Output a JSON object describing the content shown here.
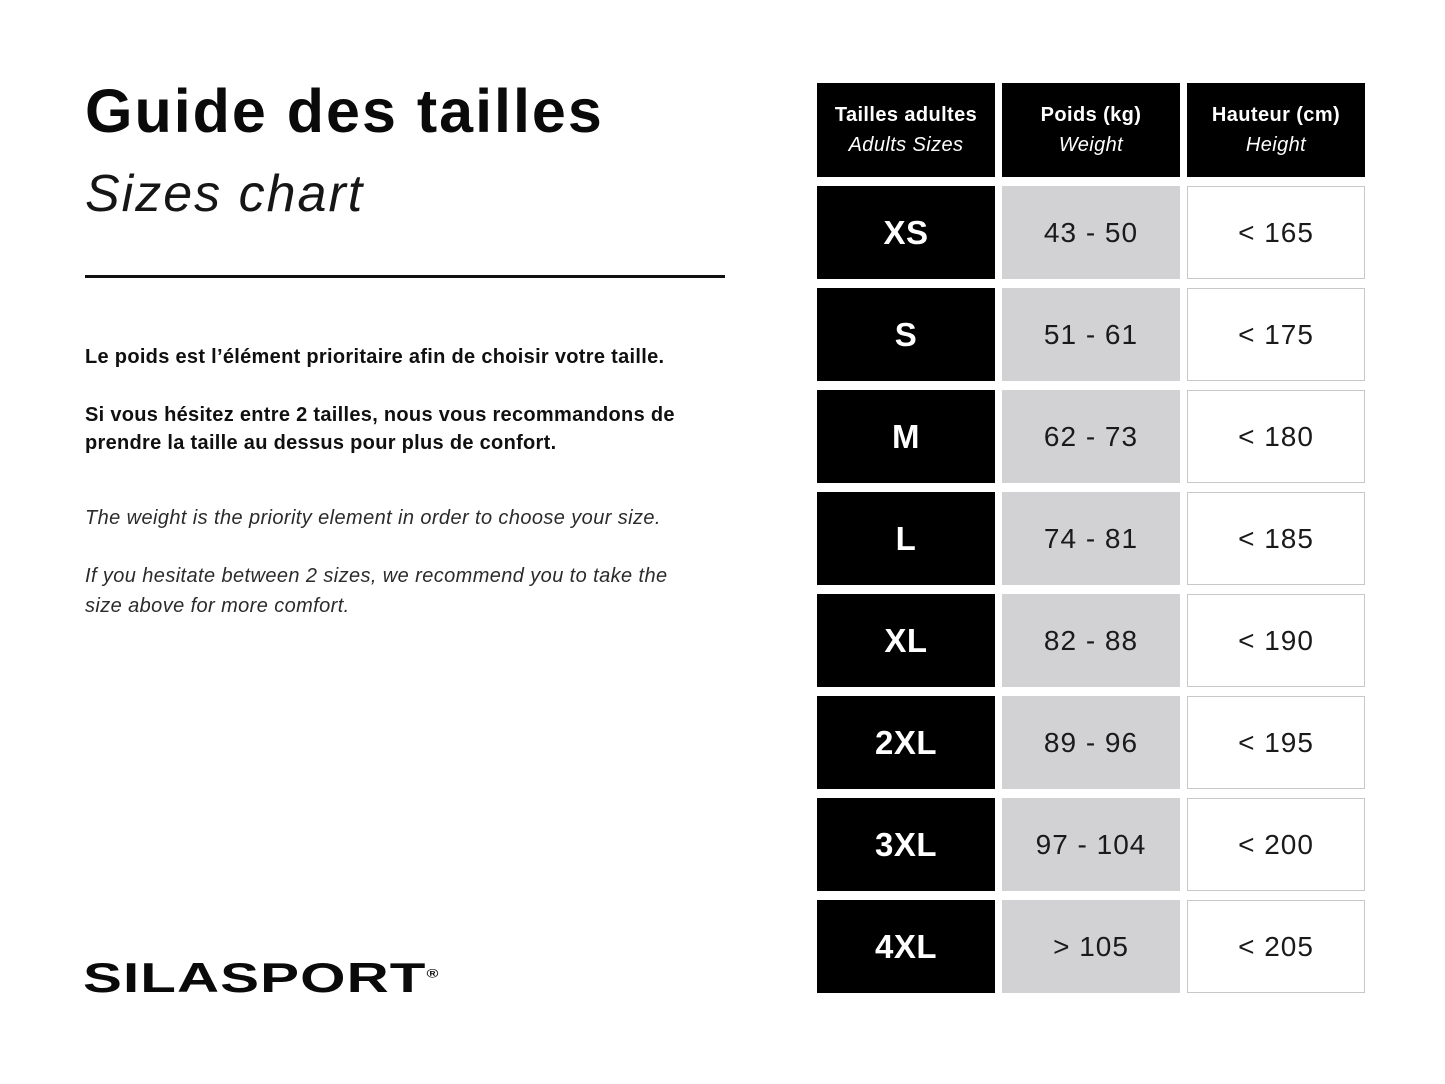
{
  "header": {
    "title_fr": "Guide des tailles",
    "title_en": "Sizes chart"
  },
  "intro_fr": {
    "p1": "Le poids est l’élément prioritaire afin de choisir votre taille.",
    "p2": "Si vous hésitez entre 2 tailles, nous vous recommandons de prendre la taille au dessus pour plus de confort."
  },
  "intro_en": {
    "p1": "The weight is the priority element in order to choose your size.",
    "p2": "If you hesitate between 2 sizes, we recommend you to take the size above for more comfort."
  },
  "table": {
    "columns": [
      {
        "label_fr": "Tailles adultes",
        "label_en": "Adults Sizes"
      },
      {
        "label_fr": "Poids (kg)",
        "label_en": "Weight"
      },
      {
        "label_fr": "Hauteur (cm)",
        "label_en": "Height"
      }
    ],
    "rows": [
      {
        "size": "XS",
        "weight": "43 - 50",
        "height": "< 165"
      },
      {
        "size": "S",
        "weight": "51 - 61",
        "height": "< 175"
      },
      {
        "size": "M",
        "weight": "62 - 73",
        "height": "< 180"
      },
      {
        "size": "L",
        "weight": "74 - 81",
        "height": "< 185"
      },
      {
        "size": "XL",
        "weight": "82 - 88",
        "height": "< 190"
      },
      {
        "size": "2XL",
        "weight": "89 - 96",
        "height": "< 195"
      },
      {
        "size": "3XL",
        "weight": "97 - 104",
        "height": "< 200"
      },
      {
        "size": "4XL",
        "weight": "> 105",
        "height": "< 205"
      }
    ]
  },
  "brand": {
    "logo_text": "SILASPORT",
    "registered_mark": "®"
  },
  "colors": {
    "background": "#ffffff",
    "header_cell_bg": "#000000",
    "size_cell_bg": "#000000",
    "weight_cell_bg": "#d2d2d4",
    "height_cell_border": "#c8c8c8",
    "text": "#101010"
  },
  "chart_data": {
    "type": "table",
    "title": "Guide des tailles / Sizes chart",
    "columns": [
      "Tailles adultes / Adults Sizes",
      "Poids (kg) / Weight",
      "Hauteur (cm) / Height"
    ],
    "rows": [
      [
        "XS",
        "43 - 50",
        "< 165"
      ],
      [
        "S",
        "51 - 61",
        "< 175"
      ],
      [
        "M",
        "62 - 73",
        "< 180"
      ],
      [
        "L",
        "74 - 81",
        "< 185"
      ],
      [
        "XL",
        "82 - 88",
        "< 190"
      ],
      [
        "2XL",
        "89 - 96",
        "< 195"
      ],
      [
        "3XL",
        "97 - 104",
        "< 200"
      ],
      [
        "4XL",
        "> 105",
        "< 205"
      ]
    ]
  }
}
